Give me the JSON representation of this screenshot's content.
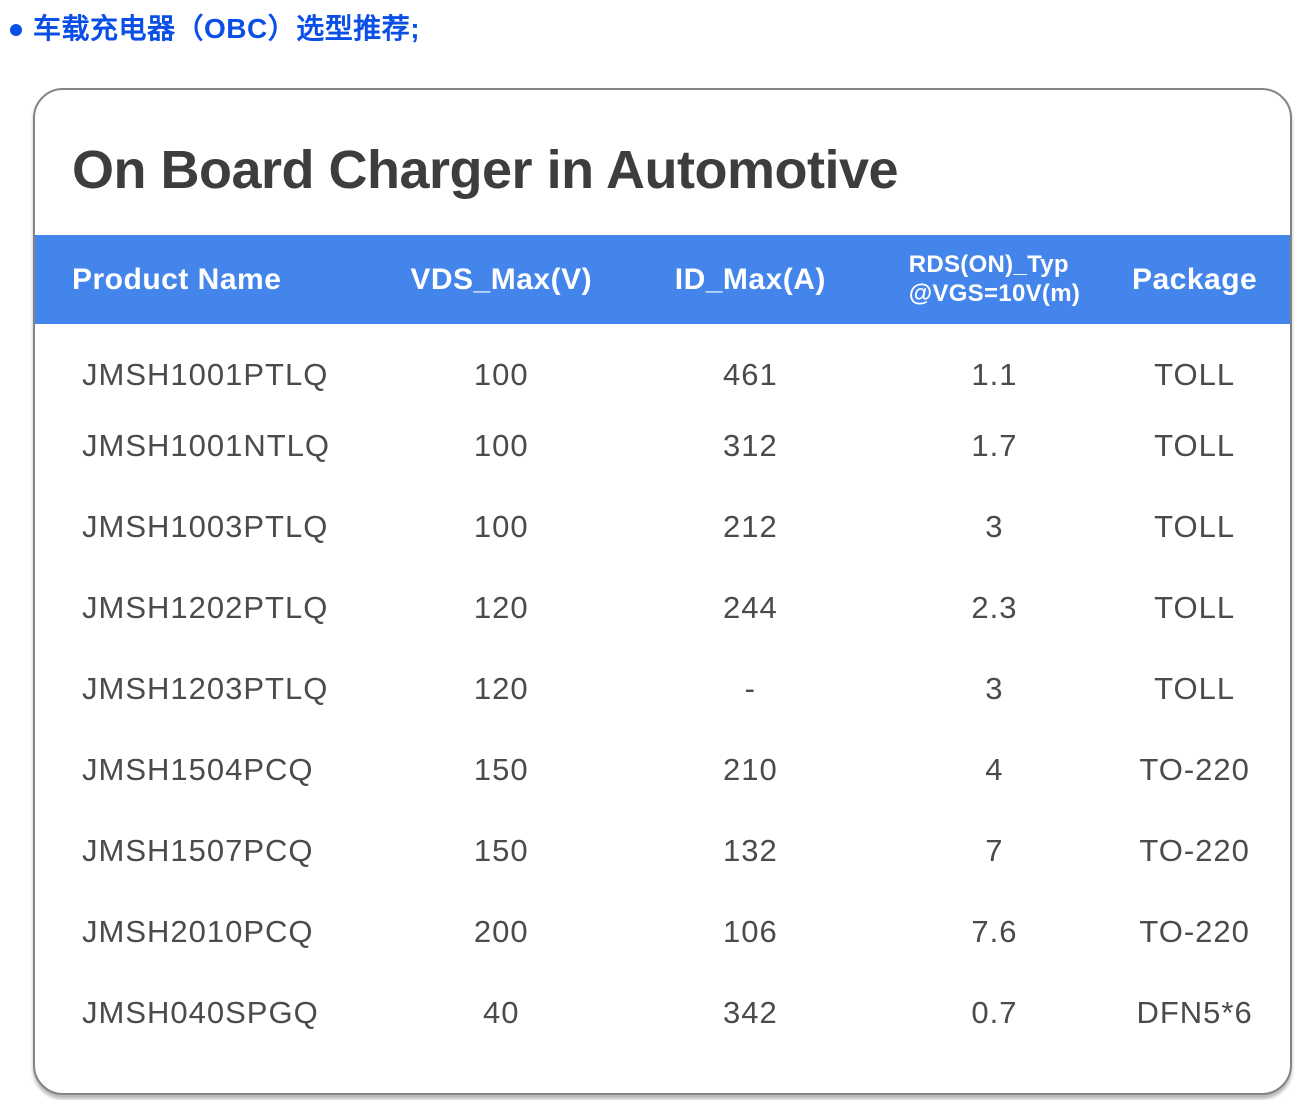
{
  "heading": {
    "text": "车载充电器（OBC）选型推荐;"
  },
  "icons": {
    "bullet": "blue-dot"
  },
  "card": {
    "title": "On Board Charger in Automotive"
  },
  "table": {
    "columns": [
      {
        "label": "Product Name"
      },
      {
        "label": "VDS_Max(V)"
      },
      {
        "label": "ID_Max(A)"
      },
      {
        "label": "RDS(ON)_Typ",
        "label2": "@VGS=10V(m)"
      },
      {
        "label": "Package"
      }
    ],
    "rows": [
      {
        "cells": [
          "JMSH1001PTLQ",
          "100",
          "461",
          "1.1",
          "TOLL"
        ]
      },
      {
        "cells": [
          "JMSH1001NTLQ",
          "100",
          "312",
          "1.7",
          "TOLL"
        ]
      },
      {
        "cells": [
          "JMSH1003PTLQ",
          "100",
          "212",
          "3",
          "TOLL"
        ]
      },
      {
        "cells": [
          "JMSH1202PTLQ",
          "120",
          "244",
          "2.3",
          "TOLL"
        ]
      },
      {
        "cells": [
          "JMSH1203PTLQ",
          "120",
          "-",
          "3",
          "TOLL"
        ]
      },
      {
        "cells": [
          "JMSH1504PCQ",
          "150",
          "210",
          "4",
          "TO-220"
        ]
      },
      {
        "cells": [
          "JMSH1507PCQ",
          "150",
          "132",
          "7",
          "TO-220"
        ]
      },
      {
        "cells": [
          "JMSH2010PCQ",
          "200",
          "106",
          "7.6",
          "TO-220"
        ]
      },
      {
        "cells": [
          "JMSH040SPGQ",
          "40",
          "342",
          "0.7",
          "DFN5*6"
        ]
      }
    ]
  },
  "colors": {
    "header_bg": "#4485eb",
    "header_text": "#ffffff",
    "heading_text": "#0b50e6",
    "title_text": "#3d3d3d",
    "body_text": "#4b4b4b",
    "card_border": "#848484"
  }
}
